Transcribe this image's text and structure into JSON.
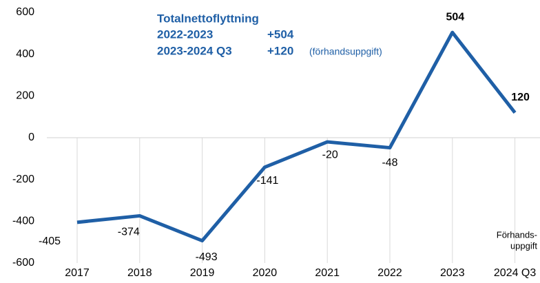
{
  "chart_data": {
    "type": "line",
    "categories": [
      "2017",
      "2018",
      "2019",
      "2020",
      "2021",
      "2022",
      "2023",
      "2024 Q3"
    ],
    "series": [
      {
        "name": "Totalnettoflyttning",
        "color": "#1f5fa6",
        "values": [
          -405,
          -374,
          -493,
          -141,
          -20,
          -48,
          504,
          120
        ]
      }
    ],
    "ylim": [
      -600,
      600
    ],
    "yticks": [
      -600,
      -400,
      -200,
      0,
      200,
      400,
      600
    ],
    "annotations": {
      "title": "Totalnettoflyttning",
      "line1_period": "2022-2023",
      "line1_value": "+504",
      "line2_period": "2023-2024 Q3",
      "line2_value": "+120",
      "line2_note": "(förhandsuppgift)",
      "footnote_1": "Förhands-",
      "footnote_2": "uppgift"
    }
  }
}
